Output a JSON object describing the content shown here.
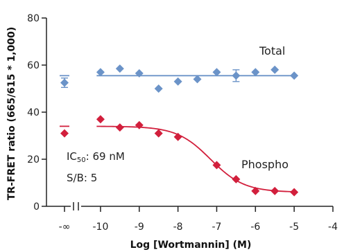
{
  "chart_data": {
    "type": "scatter",
    "xlabel": "Log [Wortmannin] (M)",
    "ylabel": "TR-FRET ratio (665/615 * 1,000)",
    "ylim": [
      0,
      80
    ],
    "xlim": [
      -10.5,
      -4
    ],
    "y_ticks": [
      0,
      20,
      40,
      60,
      80
    ],
    "x_ticks": [
      {
        "value": "-∞",
        "label": "-∞"
      },
      {
        "value": -10,
        "label": "-10"
      },
      {
        "value": -9,
        "label": "-9"
      },
      {
        "value": -8,
        "label": "-8"
      },
      {
        "value": -7,
        "label": "-7"
      },
      {
        "value": -6,
        "label": "-6"
      },
      {
        "value": -5,
        "label": "-5"
      },
      {
        "value": -4,
        "label": "-4"
      }
    ],
    "axis_break": true,
    "grid": false,
    "series": [
      {
        "name": "Total",
        "color": "#6b93c8",
        "marker": "diamond",
        "fit": "flat",
        "fit_value": 55.5,
        "zero_point": {
          "x": "-∞",
          "y": 52.5,
          "err": 2
        },
        "points": [
          {
            "x": -10,
            "y": 57
          },
          {
            "x": -9.5,
            "y": 58.5
          },
          {
            "x": -9,
            "y": 56.5
          },
          {
            "x": -8.5,
            "y": 50
          },
          {
            "x": -8,
            "y": 53
          },
          {
            "x": -7.5,
            "y": 54
          },
          {
            "x": -7,
            "y": 57
          },
          {
            "x": -6.5,
            "y": 55.5,
            "err": 2.5
          },
          {
            "x": -6,
            "y": 57
          },
          {
            "x": -5.5,
            "y": 58
          },
          {
            "x": -5,
            "y": 55.5
          }
        ]
      },
      {
        "name": "Phospho",
        "color": "#d21f3c",
        "marker": "diamond",
        "fit": "sigmoid",
        "fit_params": {
          "top": 34,
          "bottom": 6,
          "log_ic50": -7.16,
          "hill": 1
        },
        "zero_point": {
          "x": "-∞",
          "y": 31
        },
        "points": [
          {
            "x": -10,
            "y": 37
          },
          {
            "x": -9.5,
            "y": 33.5
          },
          {
            "x": -9,
            "y": 34.5
          },
          {
            "x": -8.5,
            "y": 31
          },
          {
            "x": -8,
            "y": 29.5
          },
          {
            "x": -7,
            "y": 17.5
          },
          {
            "x": -6.5,
            "y": 11.5
          },
          {
            "x": -6,
            "y": 6.5
          },
          {
            "x": -5.5,
            "y": 6.5
          },
          {
            "x": -5,
            "y": 6
          }
        ]
      }
    ],
    "annotations": {
      "ic50_prefix": "IC",
      "ic50_sub": "50",
      "ic50_value": ": 69 nM",
      "sb": "S/B: 5"
    }
  }
}
